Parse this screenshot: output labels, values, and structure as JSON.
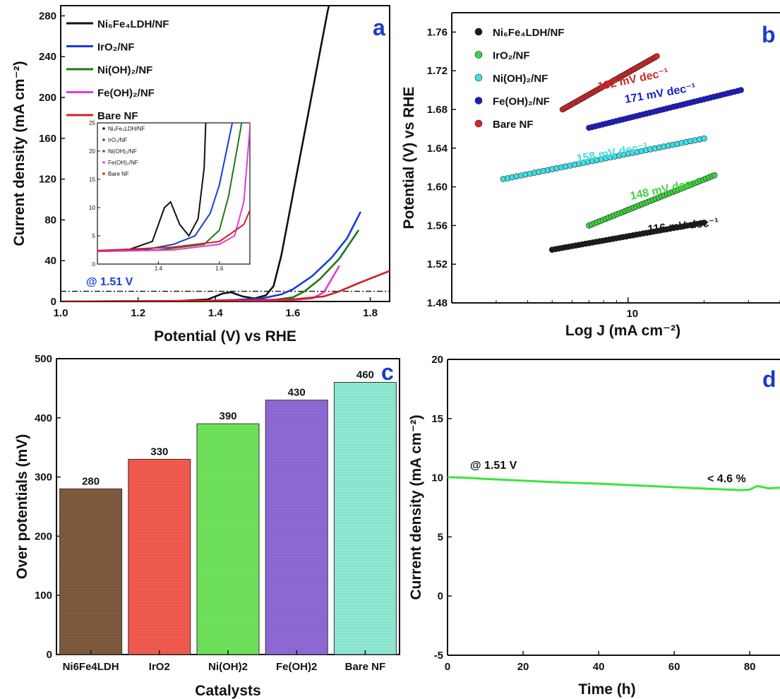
{
  "chart_data": [
    {
      "panel": "a",
      "type": "line",
      "xlabel": "Potential (V) vs RHE",
      "ylabel": "Current density (mA cm⁻²)",
      "xlim": [
        1.0,
        1.85
      ],
      "ylim": [
        0,
        290
      ],
      "xticks": [
        "1.0",
        "1.2",
        "1.4",
        "1.6",
        "1.8"
      ],
      "yticks": [
        "0",
        "40",
        "80",
        "120",
        "160",
        "200",
        "240",
        "280"
      ],
      "annotation": "@ 1.51 V",
      "reference_line_y": 10,
      "legend_position": "top-left",
      "series": [
        {
          "name": "Ni₆Fe₄LDH/NF",
          "color": "#111111",
          "points": [
            [
              1.0,
              0
            ],
            [
              1.3,
              0.5
            ],
            [
              1.38,
              2
            ],
            [
              1.42,
              8
            ],
            [
              1.44,
              9
            ],
            [
              1.47,
              5
            ],
            [
              1.5,
              3
            ],
            [
              1.53,
              6
            ],
            [
              1.55,
              15
            ],
            [
              1.57,
              45
            ],
            [
              1.59,
              85
            ],
            [
              1.61,
              125
            ],
            [
              1.63,
              165
            ],
            [
              1.65,
              205
            ],
            [
              1.67,
              245
            ],
            [
              1.69,
              285
            ],
            [
              1.7,
              300
            ]
          ]
        },
        {
          "name": "IrO₂/NF",
          "color": "#1a3cd8",
          "points": [
            [
              1.0,
              0
            ],
            [
              1.35,
              0.5
            ],
            [
              1.45,
              1.5
            ],
            [
              1.52,
              3
            ],
            [
              1.57,
              7
            ],
            [
              1.6,
              12
            ],
            [
              1.65,
              25
            ],
            [
              1.7,
              43
            ],
            [
              1.74,
              62
            ],
            [
              1.775,
              88
            ]
          ]
        },
        {
          "name": "Ni(OH)₂/NF",
          "color": "#1a7a1a",
          "points": [
            [
              1.0,
              0
            ],
            [
              1.4,
              0.5
            ],
            [
              1.55,
              1.5
            ],
            [
              1.6,
              4
            ],
            [
              1.63,
              10
            ],
            [
              1.67,
              22
            ],
            [
              1.72,
              42
            ],
            [
              1.77,
              70
            ]
          ]
        },
        {
          "name": "Fe(OH)₂/NF",
          "color": "#e23cd8",
          "points": [
            [
              1.0,
              0
            ],
            [
              1.45,
              0.5
            ],
            [
              1.6,
              1.5
            ],
            [
              1.65,
              3
            ],
            [
              1.68,
              9
            ],
            [
              1.7,
              22
            ],
            [
              1.72,
              35
            ]
          ]
        },
        {
          "name": "Bare NF",
          "color": "#d42020",
          "points": [
            [
              1.0,
              0
            ],
            [
              1.25,
              0.5
            ],
            [
              1.45,
              1
            ],
            [
              1.6,
              2
            ],
            [
              1.68,
              5
            ],
            [
              1.72,
              10
            ],
            [
              1.77,
              18
            ],
            [
              1.85,
              30
            ]
          ]
        }
      ],
      "inset": {
        "xlim": [
          1.2,
          1.7
        ],
        "ylim": [
          0,
          25
        ],
        "xticks": [
          "1.4",
          "1.6"
        ],
        "yticks": [
          "0",
          "5",
          "10",
          "15",
          "20",
          "25"
        ]
      }
    },
    {
      "panel": "b",
      "type": "scatter",
      "xlabel": "Log J (mA cm⁻²)",
      "ylabel": "Potential (V) vs RHE",
      "xscale": "log",
      "xtick_label": "10",
      "ylim": [
        1.48,
        1.78
      ],
      "yticks": [
        "1.48",
        "1.52",
        "1.56",
        "1.60",
        "1.64",
        "1.68",
        "1.72",
        "1.76"
      ],
      "legend_position": "top-left",
      "series": [
        {
          "name": "Ni₆Fe₄LDH/NF",
          "color": "#1a1a1a",
          "slope_label": "116 mV dec⁻¹",
          "x_range": [
            5,
            20
          ],
          "y_range": [
            1.535,
            1.563
          ]
        },
        {
          "name": "IrO₂/NF",
          "color": "#3ed43e",
          "slope_label": "148 mV dec⁻¹",
          "x_range": [
            7,
            22
          ],
          "y_range": [
            1.56,
            1.612
          ]
        },
        {
          "name": "Ni(OH)₂/NF",
          "color": "#3ee0e6",
          "slope_label": "158 mV dec⁻¹",
          "x_range": [
            3.2,
            20
          ],
          "y_range": [
            1.608,
            1.65
          ]
        },
        {
          "name": "Fe(OH)₂/NF",
          "color": "#1c1ccc",
          "slope_label": "171 mV dec⁻¹",
          "x_range": [
            7,
            28
          ],
          "y_range": [
            1.661,
            1.7
          ]
        },
        {
          "name": "Bare NF",
          "color": "#d42828",
          "slope_label": "192 mV dec⁻¹",
          "x_range": [
            5.5,
            13
          ],
          "y_range": [
            1.68,
            1.735
          ]
        }
      ]
    },
    {
      "panel": "c",
      "type": "bar",
      "xlabel": "Catalysts",
      "ylabel": "Over potentials (mV)",
      "ylim": [
        0,
        500
      ],
      "yticks": [
        "0",
        "100",
        "200",
        "300",
        "400",
        "500"
      ],
      "categories": [
        "Ni6Fe4LDH",
        "IrO2",
        "Ni(OH)2",
        "Fe(OH)2",
        "Bare NF"
      ],
      "values": [
        280,
        330,
        390,
        430,
        460
      ],
      "value_labels": [
        "280",
        "330",
        "390",
        "430",
        "460"
      ],
      "colors": [
        "#7f5a3c",
        "#f25a4e",
        "#6ee25a",
        "#8e6ad6",
        "#8ee8d2"
      ]
    },
    {
      "panel": "d",
      "type": "line",
      "xlabel": "Time (h)",
      "ylabel": "Current density (mA cm⁻²)",
      "xlim": [
        0,
        88
      ],
      "ylim": [
        -5,
        20
      ],
      "xticks": [
        "0",
        "20",
        "40",
        "60",
        "80"
      ],
      "yticks": [
        "-5",
        "0",
        "5",
        "10",
        "15",
        "20"
      ],
      "annotations": [
        "@ 1.51 V",
        "< 4.6 %"
      ],
      "series": [
        {
          "name": "",
          "color": "#3ee43e",
          "points": [
            [
              0,
              10.05
            ],
            [
              5,
              10.0
            ],
            [
              10,
              9.9
            ],
            [
              20,
              9.75
            ],
            [
              30,
              9.6
            ],
            [
              40,
              9.5
            ],
            [
              50,
              9.35
            ],
            [
              60,
              9.2
            ],
            [
              70,
              9.05
            ],
            [
              78,
              8.95
            ],
            [
              80,
              9.0
            ],
            [
              82,
              9.3
            ],
            [
              85,
              9.1
            ],
            [
              88,
              9.15
            ]
          ]
        }
      ]
    }
  ]
}
